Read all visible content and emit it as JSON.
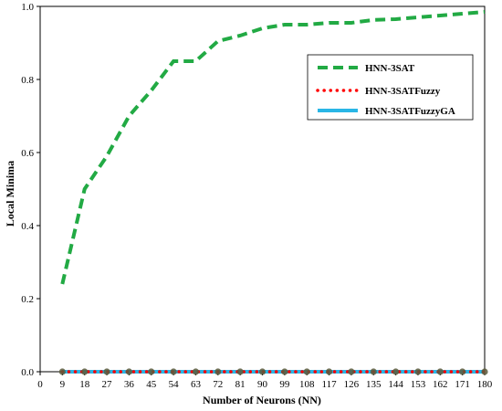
{
  "chart_data": {
    "type": "line",
    "title": "",
    "xlabel": "Number of Neurons (NN)",
    "ylabel": "Local Minima",
    "xlim": [
      0,
      180
    ],
    "ylim": [
      0,
      1.0
    ],
    "x_ticks": [
      0,
      9,
      18,
      27,
      36,
      45,
      54,
      63,
      72,
      81,
      90,
      99,
      108,
      117,
      126,
      135,
      144,
      153,
      162,
      171,
      180
    ],
    "y_ticks": [
      0.0,
      0.2,
      0.4,
      0.6,
      0.8,
      1.0
    ],
    "y_tick_labels": [
      "0.0",
      "0.2",
      "0.4",
      "0.6",
      "0.8",
      "1.0"
    ],
    "grid": false,
    "legend_position": "top-right",
    "series": [
      {
        "name": "HNN-3SAT",
        "style": "dashed",
        "color": "#22aa44",
        "x": [
          9,
          18,
          27,
          36,
          45,
          54,
          63,
          72,
          81,
          90,
          99,
          108,
          117,
          126,
          135,
          144,
          153,
          162,
          171,
          180
        ],
        "values": [
          0.24,
          0.5,
          0.59,
          0.7,
          0.77,
          0.85,
          0.85,
          0.905,
          0.92,
          0.94,
          0.95,
          0.95,
          0.955,
          0.955,
          0.963,
          0.965,
          0.97,
          0.975,
          0.98,
          0.985
        ]
      },
      {
        "name": "HNN-3SATFuzzy",
        "style": "dotted",
        "color": "#ff0000",
        "x": [
          9,
          18,
          27,
          36,
          45,
          54,
          63,
          72,
          81,
          90,
          99,
          108,
          117,
          126,
          135,
          144,
          153,
          162,
          171,
          180
        ],
        "values": [
          0,
          0,
          0,
          0,
          0,
          0,
          0,
          0,
          0,
          0,
          0,
          0,
          0,
          0,
          0,
          0,
          0,
          0,
          0,
          0
        ]
      },
      {
        "name": "HNN-3SATFuzzyGA",
        "style": "solid",
        "color": "#29b6e6",
        "x": [
          9,
          18,
          27,
          36,
          45,
          54,
          63,
          72,
          81,
          90,
          99,
          108,
          117,
          126,
          135,
          144,
          153,
          162,
          171,
          180
        ],
        "values": [
          0,
          0,
          0,
          0,
          0,
          0,
          0,
          0,
          0,
          0,
          0,
          0,
          0,
          0,
          0,
          0,
          0,
          0,
          0,
          0
        ]
      }
    ]
  }
}
